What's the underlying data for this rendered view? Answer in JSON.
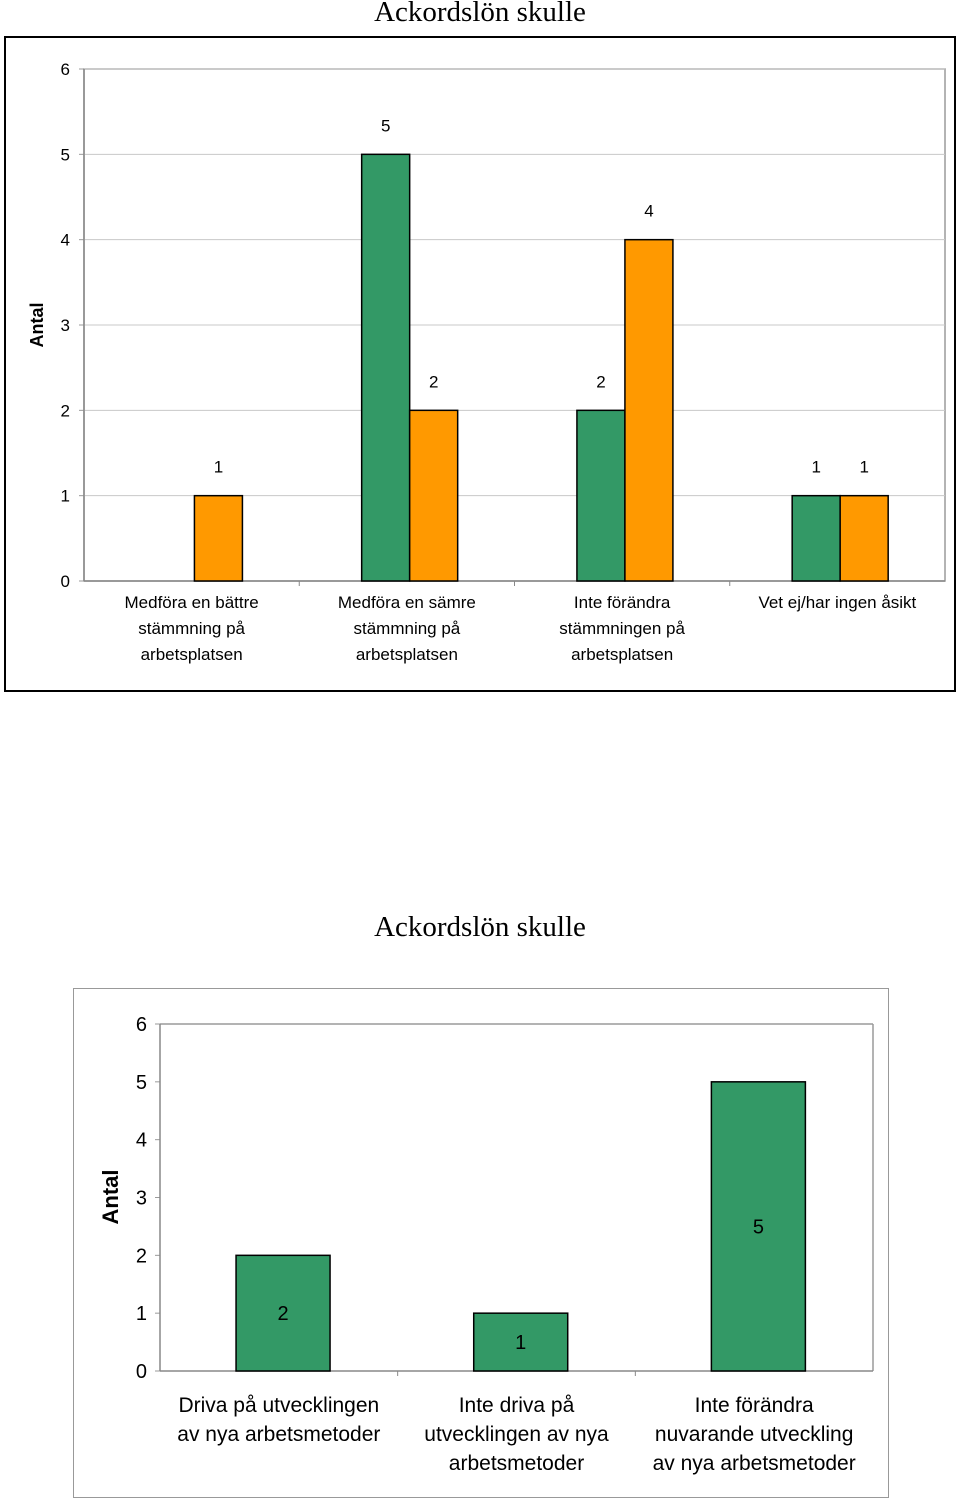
{
  "charts": [
    {
      "title": "Ackordslön skulle",
      "chart_data": {
        "type": "bar",
        "title": "Ackordslön skulle",
        "ylabel": "Antal",
        "xlabel": "",
        "ylim": [
          0,
          6
        ],
        "yticks": [
          0,
          1,
          2,
          3,
          4,
          5,
          6
        ],
        "grid": true,
        "legend": "none",
        "categories": [
          [
            "Medföra en bättre",
            "stämmning på",
            "arbetsplatsen"
          ],
          [
            "Medföra en sämre",
            "stämmning på",
            "arbetsplatsen"
          ],
          [
            "Inte förändra",
            "stämmningen på",
            "arbetsplatsen"
          ],
          [
            "Vet ej/har ingen åsikt"
          ]
        ],
        "series": [
          {
            "color": "#339966",
            "values": [
              0,
              5,
              2,
              1
            ]
          },
          {
            "color": "#ff9900",
            "values": [
              1,
              2,
              4,
              1
            ]
          }
        ]
      }
    },
    {
      "title": "Ackordslön skulle",
      "chart_data": {
        "type": "bar",
        "title": "Ackordslön skulle",
        "ylabel": "Antal",
        "xlabel": "",
        "ylim": [
          0,
          6
        ],
        "yticks": [
          0,
          1,
          2,
          3,
          4,
          5,
          6
        ],
        "grid": false,
        "legend": "none",
        "categories": [
          [
            "Driva på utvecklingen",
            "av nya arbetsmetoder"
          ],
          [
            "Inte driva på",
            "utvecklingen av nya",
            "arbetsmetoder"
          ],
          [
            "Inte förändra",
            "nuvarande utveckling",
            "av nya arbetsmetoder"
          ]
        ],
        "series": [
          {
            "color": "#339966",
            "values": [
              2,
              1,
              5
            ]
          }
        ]
      }
    }
  ]
}
